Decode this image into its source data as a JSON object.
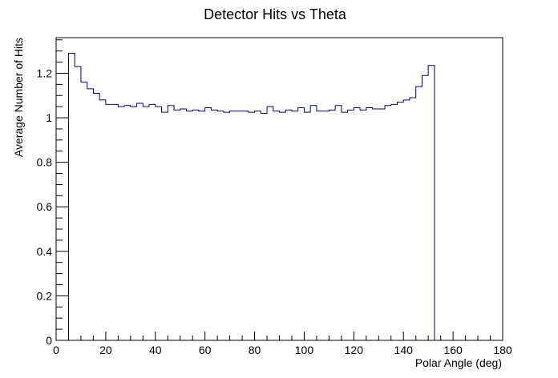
{
  "chart_data": {
    "type": "histogram",
    "title": "Detector Hits vs Theta",
    "xlabel": "Polar Angle (deg)",
    "ylabel": "Average Number of Hits",
    "xlim": [
      0,
      180
    ],
    "ylim": [
      0,
      1.36
    ],
    "x_ticks": [
      0,
      20,
      40,
      60,
      80,
      100,
      120,
      140,
      160,
      180
    ],
    "y_ticks": [
      0,
      0.2,
      0.4,
      0.6,
      0.8,
      1,
      1.2
    ],
    "bin_width": 2.5,
    "bin_start": 5,
    "values": [
      1.29,
      1.23,
      1.16,
      1.13,
      1.11,
      1.08,
      1.06,
      1.06,
      1.05,
      1.055,
      1.05,
      1.065,
      1.05,
      1.06,
      1.05,
      1.025,
      1.055,
      1.035,
      1.04,
      1.03,
      1.035,
      1.03,
      1.045,
      1.035,
      1.03,
      1.025,
      1.03,
      1.03,
      1.03,
      1.025,
      1.03,
      1.02,
      1.05,
      1.03,
      1.025,
      1.035,
      1.03,
      1.045,
      1.025,
      1.055,
      1.03,
      1.03,
      1.035,
      1.055,
      1.025,
      1.035,
      1.045,
      1.035,
      1.045,
      1.04,
      1.04,
      1.055,
      1.06,
      1.07,
      1.08,
      1.09,
      1.14,
      1.19,
      1.235
    ],
    "line_color": "#00007f",
    "grid": false
  }
}
